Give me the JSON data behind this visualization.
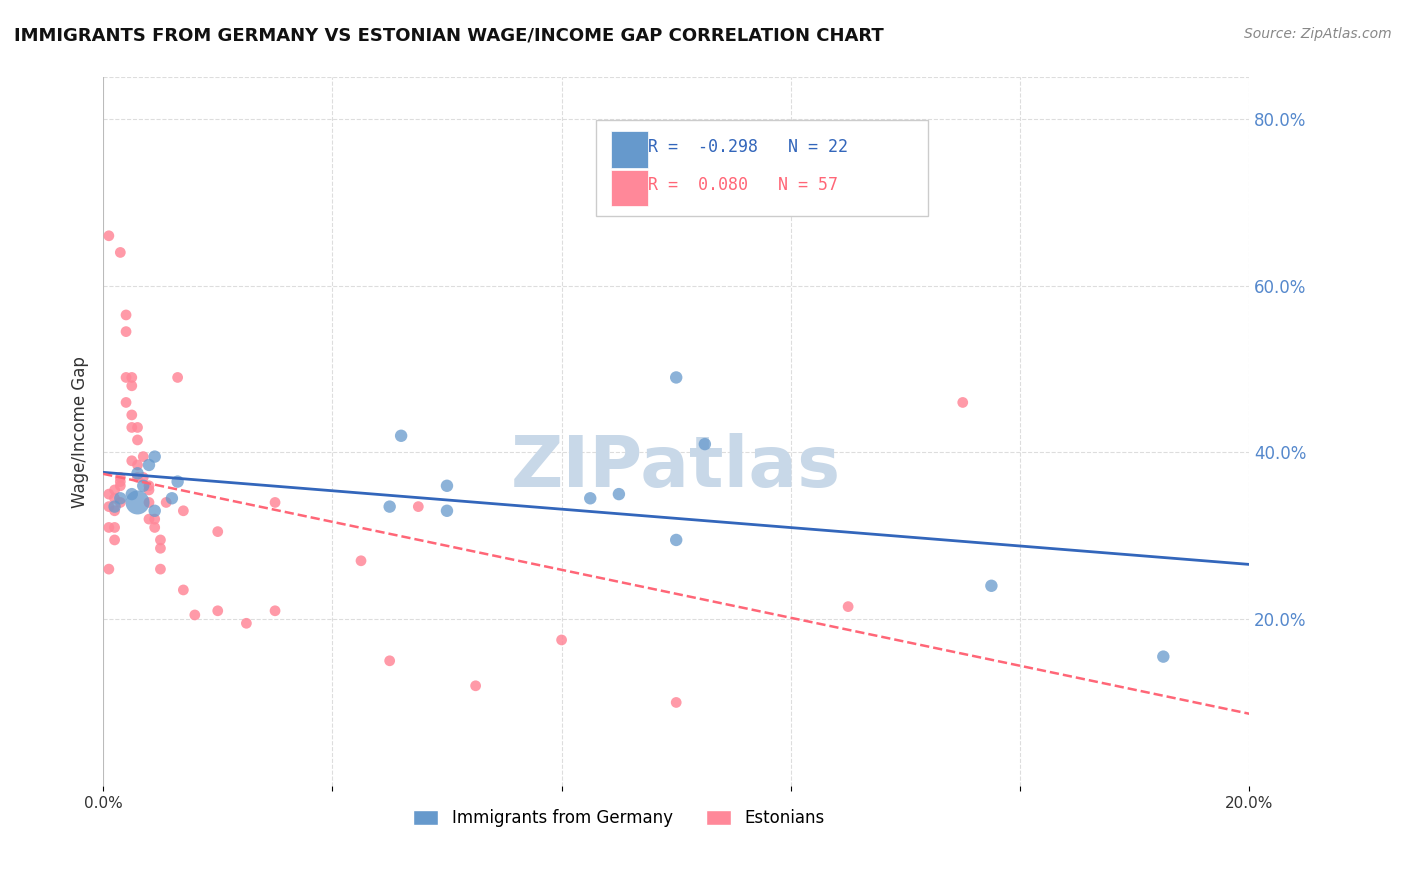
{
  "title": "IMMIGRANTS FROM GERMANY VS ESTONIAN WAGE/INCOME GAP CORRELATION CHART",
  "source_text": "Source: ZipAtlas.com",
  "ylabel": "Wage/Income Gap",
  "xlim": [
    0.0,
    0.2
  ],
  "ylim": [
    0.0,
    0.85
  ],
  "xticks": [
    0.0,
    0.04,
    0.08,
    0.12,
    0.16,
    0.2
  ],
  "xtick_labels": [
    "0.0%",
    "",
    "",
    "",
    "",
    "20.0%"
  ],
  "yticks_right": [
    0.2,
    0.4,
    0.6,
    0.8
  ],
  "ytick_labels_right": [
    "20.0%",
    "40.0%",
    "60.0%",
    "80.0%"
  ],
  "blue_R": -0.298,
  "blue_N": 22,
  "pink_R": 0.08,
  "pink_N": 57,
  "blue_color": "#6699CC",
  "pink_color": "#FF8899",
  "blue_line_color": "#3366BB",
  "pink_line_color": "#FF6677",
  "grid_color": "#DDDDDD",
  "watermark_text": "ZIPatlas",
  "watermark_color": "#C8D8E8",
  "legend_label_blue": "Immigrants from Germany",
  "legend_label_pink": "Estonians",
  "blue_scatter_x": [
    0.002,
    0.003,
    0.005,
    0.006,
    0.006,
    0.007,
    0.008,
    0.009,
    0.009,
    0.012,
    0.013,
    0.05,
    0.052,
    0.06,
    0.06,
    0.085,
    0.09,
    0.1,
    0.1,
    0.105,
    0.155,
    0.185
  ],
  "blue_scatter_y": [
    0.335,
    0.345,
    0.35,
    0.34,
    0.375,
    0.36,
    0.385,
    0.395,
    0.33,
    0.345,
    0.365,
    0.335,
    0.42,
    0.33,
    0.36,
    0.345,
    0.35,
    0.295,
    0.49,
    0.41,
    0.24,
    0.155
  ],
  "blue_scatter_size": [
    80,
    80,
    80,
    300,
    80,
    80,
    80,
    80,
    80,
    80,
    80,
    80,
    80,
    80,
    80,
    80,
    80,
    80,
    80,
    80,
    80,
    80
  ],
  "pink_scatter_x": [
    0.001,
    0.001,
    0.001,
    0.001,
    0.001,
    0.002,
    0.002,
    0.002,
    0.002,
    0.002,
    0.003,
    0.003,
    0.003,
    0.003,
    0.003,
    0.004,
    0.004,
    0.004,
    0.004,
    0.005,
    0.005,
    0.005,
    0.005,
    0.005,
    0.006,
    0.006,
    0.006,
    0.006,
    0.007,
    0.007,
    0.008,
    0.008,
    0.008,
    0.008,
    0.009,
    0.009,
    0.01,
    0.01,
    0.01,
    0.011,
    0.013,
    0.014,
    0.014,
    0.016,
    0.02,
    0.02,
    0.025,
    0.03,
    0.03,
    0.045,
    0.05,
    0.055,
    0.065,
    0.08,
    0.1,
    0.13,
    0.15
  ],
  "pink_scatter_y": [
    0.66,
    0.35,
    0.335,
    0.31,
    0.26,
    0.355,
    0.345,
    0.33,
    0.31,
    0.295,
    0.64,
    0.37,
    0.365,
    0.36,
    0.34,
    0.565,
    0.545,
    0.49,
    0.46,
    0.49,
    0.48,
    0.445,
    0.43,
    0.39,
    0.43,
    0.415,
    0.385,
    0.37,
    0.395,
    0.37,
    0.36,
    0.355,
    0.34,
    0.32,
    0.32,
    0.31,
    0.295,
    0.285,
    0.26,
    0.34,
    0.49,
    0.33,
    0.235,
    0.205,
    0.305,
    0.21,
    0.195,
    0.34,
    0.21,
    0.27,
    0.15,
    0.335,
    0.12,
    0.175,
    0.1,
    0.215,
    0.46
  ]
}
